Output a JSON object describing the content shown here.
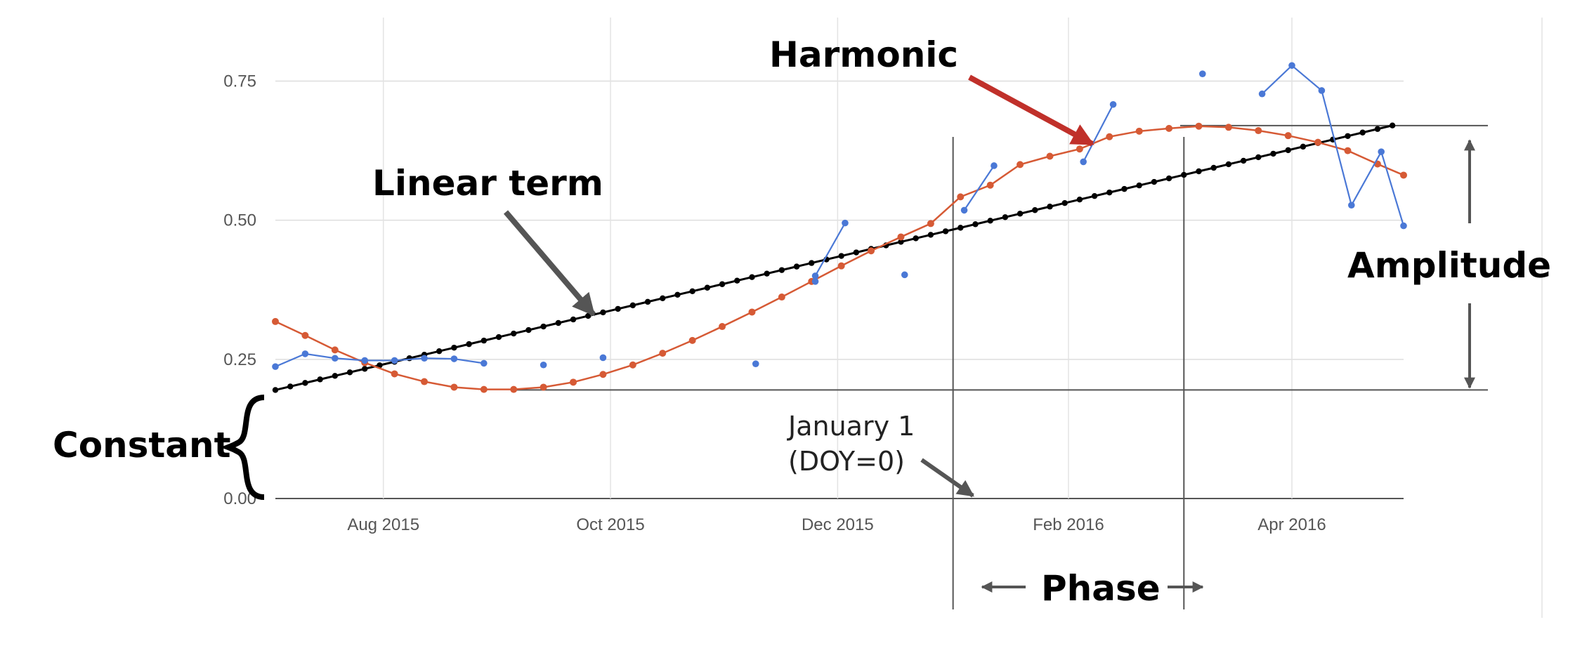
{
  "chart_data": {
    "type": "line",
    "title": "",
    "xlabel": "",
    "ylabel": "",
    "x_ticks": [
      "Aug 2015",
      "Oct 2015",
      "Dec 2015",
      "Feb 2016",
      "Apr 2016"
    ],
    "x_tick_dates": [
      "2015-08-01",
      "2015-10-01",
      "2015-12-01",
      "2016-02-01",
      "2016-04-01"
    ],
    "y_ticks": [
      "0.00",
      "0.25",
      "0.50",
      "0.75"
    ],
    "y_tick_values": [
      0,
      0.25,
      0.5,
      0.75
    ],
    "xlim": [
      "2015-07-03",
      "2016-05-01"
    ],
    "ylim": [
      0,
      0.82
    ],
    "grid": true,
    "legend": "none",
    "series": [
      {
        "key": "observed",
        "color": "#4a78d6",
        "points": [
          {
            "x": "2015-07-03",
            "y": 0.237,
            "seg": 0
          },
          {
            "x": "2015-07-11",
            "y": 0.26,
            "seg": 0
          },
          {
            "x": "2015-07-19",
            "y": 0.252,
            "seg": 0
          },
          {
            "x": "2015-07-27",
            "y": 0.248,
            "seg": 0
          },
          {
            "x": "2015-08-04",
            "y": 0.248,
            "seg": 0
          },
          {
            "x": "2015-08-12",
            "y": 0.252,
            "seg": 0
          },
          {
            "x": "2015-08-20",
            "y": 0.251,
            "seg": 0
          },
          {
            "x": "2015-08-28",
            "y": 0.243,
            "seg": 0
          },
          {
            "x": "2015-09-13",
            "y": 0.24,
            "seg": 1
          },
          {
            "x": "2015-09-29",
            "y": 0.253,
            "seg": 2
          },
          {
            "x": "2015-11-09",
            "y": 0.242,
            "seg": 3
          },
          {
            "x": "2015-11-25",
            "y": 0.39,
            "seg": 4
          },
          {
            "x": "2015-11-25",
            "y": 0.4,
            "seg": 4
          },
          {
            "x": "2015-12-03",
            "y": 0.495,
            "seg": 4
          },
          {
            "x": "2015-12-19",
            "y": 0.402,
            "seg": 5
          },
          {
            "x": "2016-01-04",
            "y": 0.518,
            "seg": 6
          },
          {
            "x": "2016-01-12",
            "y": 0.598,
            "seg": 6
          },
          {
            "x": "2016-02-05",
            "y": 0.605,
            "seg": 7
          },
          {
            "x": "2016-02-13",
            "y": 0.708,
            "seg": 7
          },
          {
            "x": "2016-03-08",
            "y": 0.763,
            "seg": 8
          },
          {
            "x": "2016-03-24",
            "y": 0.727,
            "seg": 9
          },
          {
            "x": "2016-04-01",
            "y": 0.778,
            "seg": 9
          },
          {
            "x": "2016-04-09",
            "y": 0.733,
            "seg": 9
          },
          {
            "x": "2016-04-17",
            "y": 0.527,
            "seg": 9
          },
          {
            "x": "2016-04-25",
            "y": 0.623,
            "seg": 9
          },
          {
            "x": "2016-05-01",
            "y": 0.49,
            "seg": 9
          }
        ]
      },
      {
        "key": "harmonic",
        "color": "#d65a35",
        "constant": 0.195,
        "amplitude": 0.475,
        "peak_date": "2016-03-03",
        "x": [
          "2015-07-03",
          "2015-07-11",
          "2015-07-19",
          "2015-07-27",
          "2015-08-04",
          "2015-08-12",
          "2015-08-20",
          "2015-08-28",
          "2015-09-05",
          "2015-09-13",
          "2015-09-21",
          "2015-09-29",
          "2015-10-07",
          "2015-10-15",
          "2015-10-23",
          "2015-10-31",
          "2015-11-08",
          "2015-11-16",
          "2015-11-24",
          "2015-12-02",
          "2015-12-10",
          "2015-12-18",
          "2015-12-26",
          "2016-01-03",
          "2016-01-11",
          "2016-01-19",
          "2016-01-27",
          "2016-02-04",
          "2016-02-12",
          "2016-02-20",
          "2016-02-28",
          "2016-03-07",
          "2016-03-15",
          "2016-03-23",
          "2016-03-31",
          "2016-04-08",
          "2016-04-16",
          "2016-04-24",
          "2016-05-01"
        ],
        "y": [
          0.318,
          0.293,
          0.267,
          0.244,
          0.224,
          0.21,
          0.2,
          0.196,
          0.196,
          0.2,
          0.209,
          0.223,
          0.24,
          0.261,
          0.284,
          0.309,
          0.335,
          0.362,
          0.39,
          0.418,
          0.445,
          0.47,
          0.494,
          0.542,
          0.563,
          0.6,
          0.615,
          0.628,
          0.65,
          0.66,
          0.665,
          0.669,
          0.667,
          0.661,
          0.652,
          0.64,
          0.625,
          0.601,
          0.581
        ]
      },
      {
        "key": "linear",
        "color": "#000000",
        "start": {
          "x": "2015-07-03",
          "y": 0.195
        },
        "end": {
          "x": "2016-05-01",
          "y": 0.675
        },
        "point_step_days": 4
      }
    ],
    "annotations": {
      "harmonic": "Harmonic",
      "linear_term": "Linear term",
      "amplitude": "Amplitude",
      "constant": "Constant",
      "jan1_line1": "January 1",
      "jan1_line2": "(DOY=0)",
      "phase": "Phase",
      "jan1_date": "2016-01-01",
      "peak_date": "2016-03-03",
      "peak_value": 0.67,
      "constant_value": 0.195
    }
  }
}
